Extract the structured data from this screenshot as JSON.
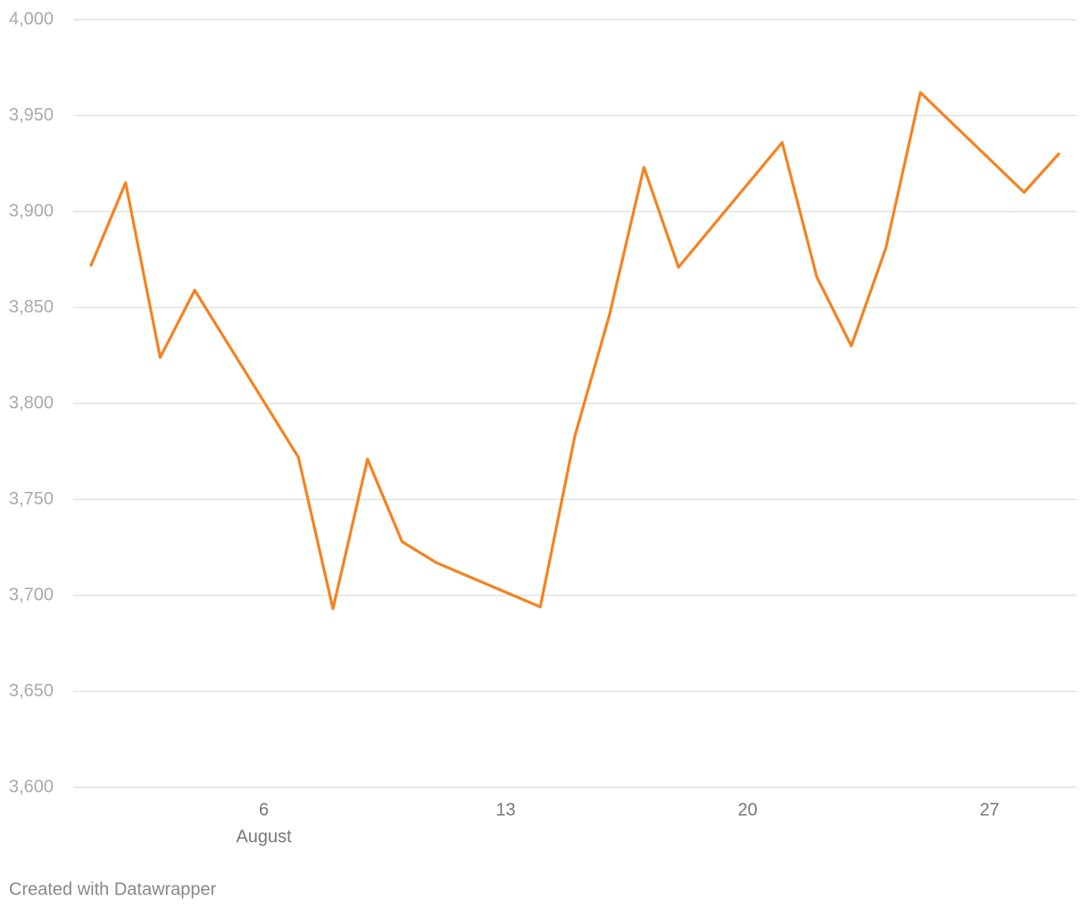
{
  "chart_data": {
    "type": "line",
    "x": [
      1,
      2,
      3,
      4,
      7,
      8,
      9,
      10,
      11,
      14,
      15,
      16,
      17,
      18,
      21,
      22,
      23,
      24,
      25,
      28,
      29
    ],
    "values": [
      3872,
      3915,
      3824,
      3859,
      3772,
      3693,
      3771,
      3728,
      3717,
      3694,
      3783,
      3846,
      3923,
      3871,
      3936,
      3866,
      3830,
      3881,
      3962,
      3910,
      3930
    ],
    "color": "#f58220",
    "xlim": [
      1,
      29
    ],
    "xticks": [
      6,
      13,
      20,
      27
    ],
    "x_month_label": "August",
    "ylim": [
      3600,
      4000
    ],
    "yticks": [
      {
        "value": 3600,
        "label": "3,600"
      },
      {
        "value": 3650,
        "label": "3,650"
      },
      {
        "value": 3700,
        "label": "3,700"
      },
      {
        "value": 3750,
        "label": "3,750"
      },
      {
        "value": 3800,
        "label": "3,800"
      },
      {
        "value": 3850,
        "label": "3,850"
      },
      {
        "value": 3900,
        "label": "3,900"
      },
      {
        "value": 3950,
        "label": "3,950"
      },
      {
        "value": 4000,
        "label": "4,000"
      }
    ],
    "grid": true,
    "footer": "Created with Datawrapper"
  }
}
